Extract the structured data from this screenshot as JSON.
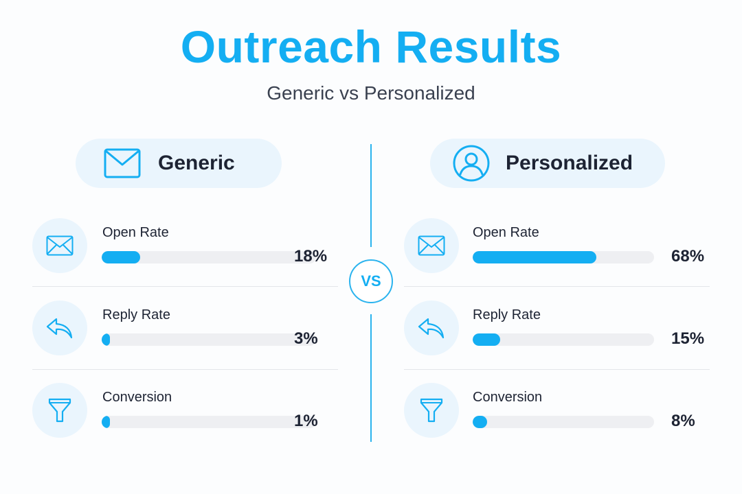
{
  "header": {
    "title": "Outreach Results",
    "subtitle": "Generic vs Personalized"
  },
  "vs_label": "VS",
  "colors": {
    "accent": "#14aef2",
    "pill_background": "#eaf5fd",
    "bar_track": "#eeeff2",
    "text_dark": "#1d2333"
  },
  "columns": [
    {
      "label": "Generic",
      "icon": "envelope-icon",
      "metrics": [
        {
          "label": "Open Rate",
          "value": "18%",
          "fraction": 0.18,
          "icon": "envelope-icon"
        },
        {
          "label": "Reply Rate",
          "value": "3%",
          "fraction": 0.03,
          "icon": "reply-arrow-icon"
        },
        {
          "label": "Conversion",
          "value": "1%",
          "fraction": 0.01,
          "icon": "funnel-icon"
        }
      ]
    },
    {
      "label": "Personalized",
      "icon": "user-profile-icon",
      "metrics": [
        {
          "label": "Open Rate",
          "value": "68%",
          "fraction": 0.68,
          "icon": "envelope-icon"
        },
        {
          "label": "Reply Rate",
          "value": "15%",
          "fraction": 0.15,
          "icon": "reply-arrow-icon"
        },
        {
          "label": "Conversion",
          "value": "8%",
          "fraction": 0.08,
          "icon": "funnel-icon"
        }
      ]
    }
  ]
}
